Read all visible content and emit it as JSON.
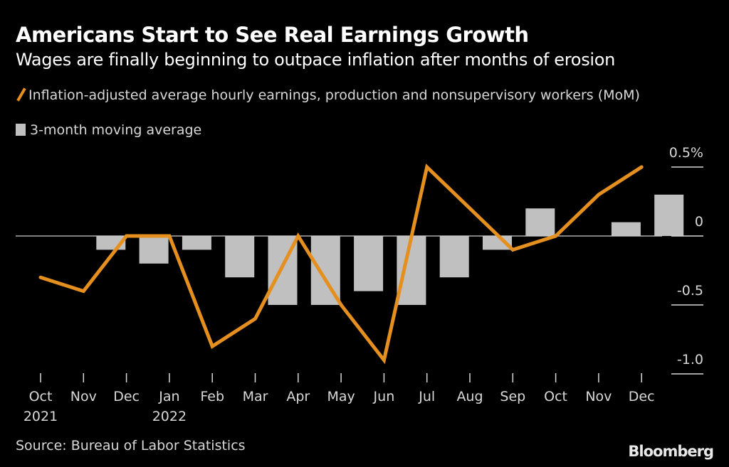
{
  "header": {
    "title": "Americans Start to See Real Earnings Growth",
    "subtitle": "Wages are finally beginning to outpace inflation after months of erosion"
  },
  "footer": {
    "source": "Source: Bureau of Labor Statistics",
    "brand": "Bloomberg"
  },
  "colors": {
    "line": "#e58f1f",
    "bar": "#c0c0c0",
    "background": "#000000",
    "axis": "#d8d8d8"
  },
  "chart_data": {
    "type": "bar+line",
    "title": "Americans Start to See Real Earnings Growth",
    "subtitle": "Wages are finally beginning to outpace inflation after months of erosion",
    "categories": [
      "Oct",
      "Nov",
      "Dec",
      "Jan",
      "Feb",
      "Mar",
      "Apr",
      "May",
      "Jun",
      "Jul",
      "Aug",
      "Sep",
      "Oct",
      "Nov",
      "Dec"
    ],
    "year_labels": [
      "2021",
      "",
      "",
      "2022",
      "",
      "",
      "",
      "",
      "",
      "",
      "",
      "",
      "",
      "",
      ""
    ],
    "series": [
      {
        "name": "Inflation-adjusted average hourly earnings, production and nonsupervisory workers (MoM)",
        "kind": "line",
        "values": [
          -0.3,
          -0.4,
          0.0,
          0.0,
          -0.8,
          -0.6,
          0.0,
          -0.5,
          -0.9,
          0.5,
          0.2,
          -0.1,
          0.0,
          0.3,
          0.5
        ]
      },
      {
        "name": "3-month moving average",
        "kind": "bar",
        "values": [
          0.0,
          -0.1,
          -0.2,
          -0.1,
          -0.3,
          -0.5,
          -0.5,
          -0.4,
          -0.5,
          -0.3,
          -0.1,
          0.2,
          0.0,
          0.1,
          0.3
        ]
      }
    ],
    "yticks": [
      "0.5%",
      "0",
      "-0.5",
      "-1.0"
    ],
    "ytick_values": [
      0.5,
      0,
      -0.5,
      -1.0
    ],
    "ylim": [
      -1.0,
      0.5
    ],
    "yaxis_side": "right",
    "xlabel": "",
    "ylabel": "",
    "grid": false,
    "legend_position": "top-left"
  }
}
